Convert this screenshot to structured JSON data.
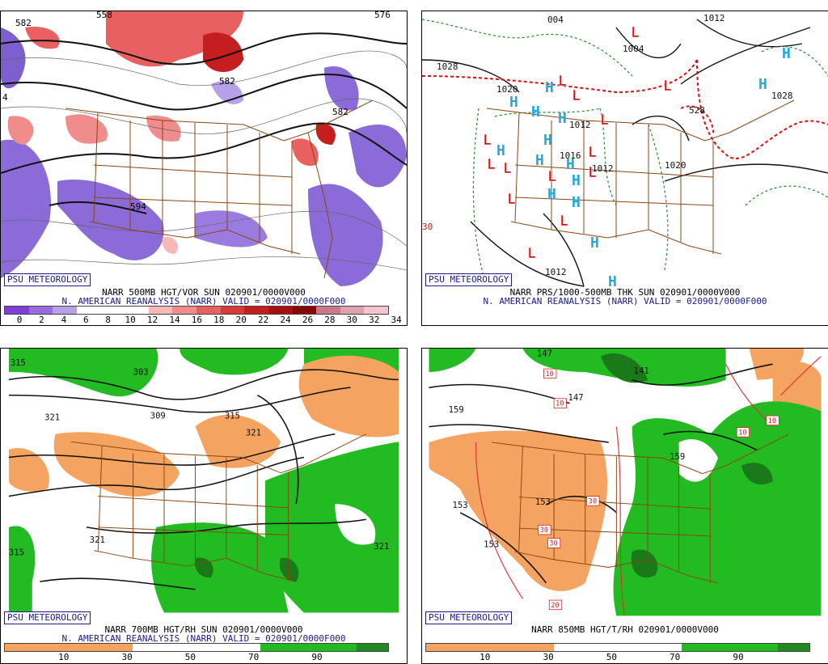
{
  "panels": [
    {
      "id": "p1",
      "logo": "PSU METEOROLOGY",
      "title": "NARR 500MB HGT/VOR SUN 020901/0000V000",
      "subtitle": "N. AMERICAN REANALYSIS (NARR) VALID = 020901/0000F000",
      "colorbar": {
        "colors": [
          "#7e3fd8",
          "#9a6be0",
          "#b6a1e8",
          "#ffffff",
          "#ffffff",
          "#ffffff",
          "#f5b8b8",
          "#f08c8c",
          "#e86060",
          "#d83a3a",
          "#c41e1e",
          "#a81010",
          "#880808",
          "#c87a8a",
          "#e0a0b0",
          "#f4c4d0"
        ],
        "ticks": [
          "0",
          "2",
          "4",
          "6",
          "8",
          "10",
          "12",
          "14",
          "16",
          "18",
          "20",
          "22",
          "24",
          "26",
          "28",
          "30",
          "32",
          "34"
        ]
      },
      "contour_labels": [
        "582",
        "558",
        "582",
        "594",
        "576",
        "582",
        "4"
      ]
    },
    {
      "id": "p2",
      "logo": "PSU METEOROLOGY",
      "title": "NARR PRS/1000-500MB THK SUN 020901/0000V000",
      "subtitle": "N. AMERICAN REANALYSIS (NARR) VALID = 020901/0000F000",
      "contour_labels": [
        "1028",
        "004",
        "1004",
        "1012",
        "1020",
        "1012",
        "1016",
        "1012",
        "1020",
        "1012",
        "1028",
        "528",
        "30"
      ],
      "symbols": {
        "high": "H",
        "low": "L"
      }
    },
    {
      "id": "p3",
      "logo": "PSU METEOROLOGY",
      "title": "NARR 700MB HGT/RH SUN 020901/0000V000",
      "subtitle": "N. AMERICAN REANALYSIS (NARR) VALID = 020901/0000F000",
      "colorbar": {
        "colors": [
          "#f4a460",
          "#f4a460",
          "#f4a460",
          "#f4a460",
          "#ffffff",
          "#ffffff",
          "#ffffff",
          "#ffffff",
          "#22bb22",
          "#22bb22",
          "#22bb22",
          "#228822"
        ],
        "ticks": [
          "10",
          "30",
          "50",
          "70",
          "90"
        ]
      },
      "contour_labels": [
        "315",
        "303",
        "321",
        "309",
        "315",
        "321",
        "315",
        "321",
        "321"
      ]
    },
    {
      "id": "p4",
      "logo": "PSU METEOROLOGY",
      "title": "NARR 850MB HGT/T/RH 020901/0000V000",
      "colorbar": {
        "colors": [
          "#f4a460",
          "#f4a460",
          "#f4a460",
          "#f4a460",
          "#ffffff",
          "#ffffff",
          "#ffffff",
          "#ffffff",
          "#22bb22",
          "#22bb22",
          "#22bb22",
          "#228822"
        ],
        "ticks": [
          "10",
          "30",
          "50",
          "70",
          "90"
        ]
      },
      "contour_labels": [
        "147",
        "159",
        "147",
        "153",
        "153",
        "153",
        "141",
        "159"
      ],
      "temp_labels": [
        "10",
        "10",
        "10",
        "10",
        "30",
        "30",
        "30",
        "20"
      ]
    }
  ]
}
